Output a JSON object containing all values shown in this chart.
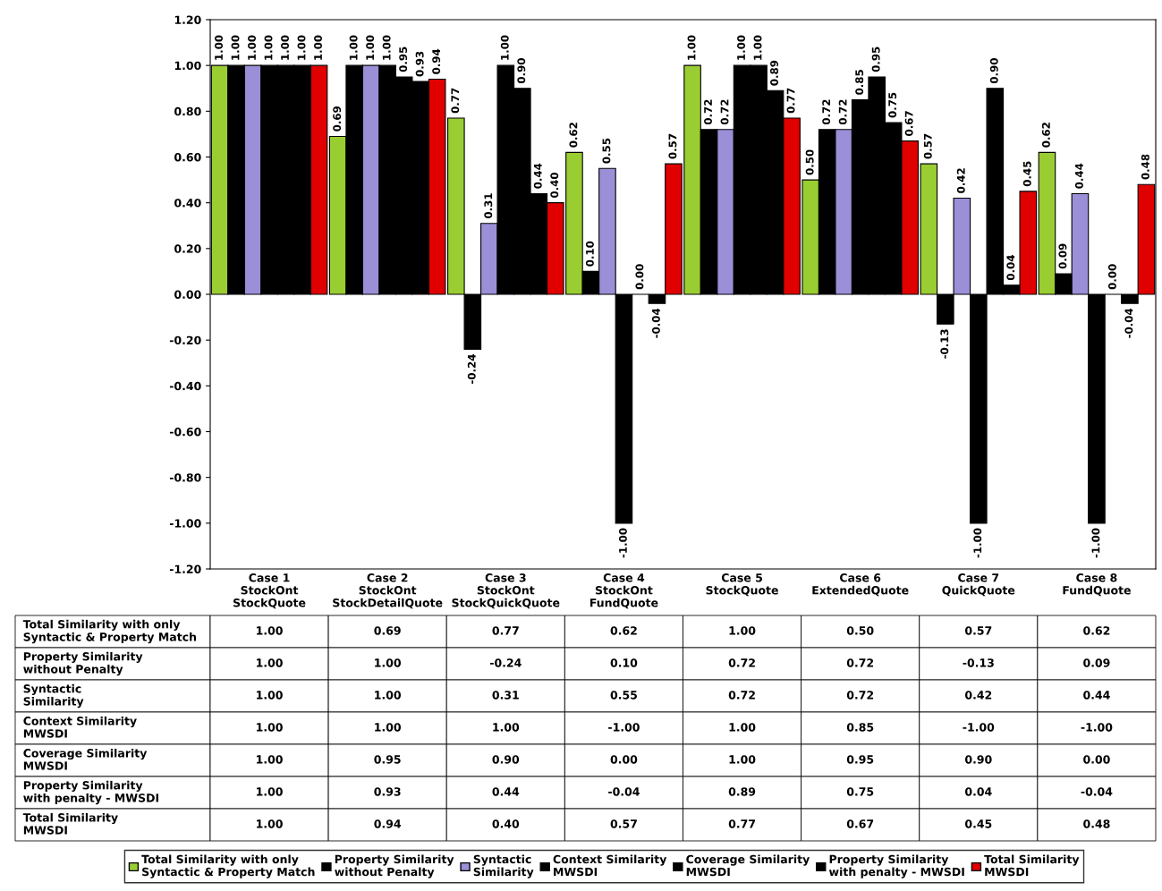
{
  "chart_data": {
    "type": "bar",
    "categories": [
      "Case 1\nStockOnt\nStockQuote",
      "Case 2\nStockOnt\nStockDetailQuote",
      "Case 3\nStockOnt\nStockQuickQuote",
      "Case 4\nStockOnt\nFundQuote",
      "Case 5\nStockQuote",
      "Case 6\nExtendedQuote",
      "Case 7\nQuickQuote",
      "Case 8\nFundQuote"
    ],
    "series": [
      {
        "name": "Total Similarity with only\nSyntactic & Property Match",
        "color": "#9acd32",
        "values": [
          1.0,
          0.69,
          0.77,
          0.62,
          1.0,
          0.5,
          0.57,
          0.62
        ],
        "value_labels": [
          "1.00",
          "0.69",
          "0.77",
          "0.62",
          "1.00",
          "0.50",
          "0.57",
          "0.62"
        ]
      },
      {
        "name": "Property Similarity\nwithout Penalty",
        "color": "#000000",
        "values": [
          1.0,
          1.0,
          -0.24,
          0.1,
          0.72,
          0.72,
          -0.13,
          0.09
        ],
        "value_labels": [
          "1.00",
          "1.00",
          "-0.24",
          "0.10",
          "0.72",
          "0.72",
          "-0.13",
          "0.09"
        ]
      },
      {
        "name": "Syntactic\nSimilarity",
        "color": "#9b8fd8",
        "values": [
          1.0,
          1.0,
          0.31,
          0.55,
          0.72,
          0.72,
          0.42,
          0.44
        ],
        "value_labels": [
          "1.00",
          "1.00",
          "0.31",
          "0.55",
          "0.72",
          "0.72",
          "0.42",
          "0.44"
        ]
      },
      {
        "name": "Context Similarity\nMWSDI",
        "color": "#000000",
        "values": [
          1.0,
          1.0,
          1.0,
          -1.0,
          1.0,
          0.85,
          -1.0,
          -1.0
        ],
        "value_labels": [
          "1.00",
          "1.00",
          "1.00",
          "-1.00",
          "1.00",
          "0.85",
          "-1.00",
          "-1.00"
        ]
      },
      {
        "name": "Coverage Similarity\nMWSDI",
        "color": "#000000",
        "values": [
          1.0,
          0.95,
          0.9,
          0.0,
          1.0,
          0.95,
          0.9,
          0.0
        ],
        "value_labels": [
          "1.00",
          "0.95",
          "0.90",
          "0.00",
          "1.00",
          "0.95",
          "0.90",
          "0.00"
        ]
      },
      {
        "name": "Property Similarity\nwith penalty - MWSDI",
        "color": "#000000",
        "values": [
          1.0,
          0.93,
          0.44,
          -0.04,
          0.89,
          0.75,
          0.04,
          -0.04
        ],
        "value_labels": [
          "1.00",
          "0.93",
          "0.44",
          "-0.04",
          "0.89",
          "0.75",
          "0.04",
          "-0.04"
        ]
      },
      {
        "name": "Total Similarity\nMWSDI",
        "color": "#e00000",
        "values": [
          1.0,
          0.94,
          0.4,
          0.57,
          0.77,
          0.67,
          0.45,
          0.48
        ],
        "value_labels": [
          "1.00",
          "0.94",
          "0.40",
          "0.57",
          "0.77",
          "0.67",
          "0.45",
          "0.48"
        ]
      }
    ],
    "ylim": [
      -1.2,
      1.2
    ],
    "yticks": [
      {
        "value": -1.2,
        "label": "-1.20"
      },
      {
        "value": -1.0,
        "label": "-1.00"
      },
      {
        "value": -0.8,
        "label": "-0.80"
      },
      {
        "value": -0.6,
        "label": "-0.60"
      },
      {
        "value": -0.4,
        "label": "-0.40"
      },
      {
        "value": -0.2,
        "label": "-0.20"
      },
      {
        "value": 0,
        "label": "0.00"
      },
      {
        "value": 0.2,
        "label": "0.20"
      },
      {
        "value": 0.4,
        "label": "0.40"
      },
      {
        "value": 0.6,
        "label": "0.60"
      },
      {
        "value": 0.8,
        "label": "0.80"
      },
      {
        "value": 1.0,
        "label": "1.00"
      },
      {
        "value": 1.2,
        "label": "1.20"
      }
    ],
    "grid": false,
    "legend": "bottom"
  }
}
